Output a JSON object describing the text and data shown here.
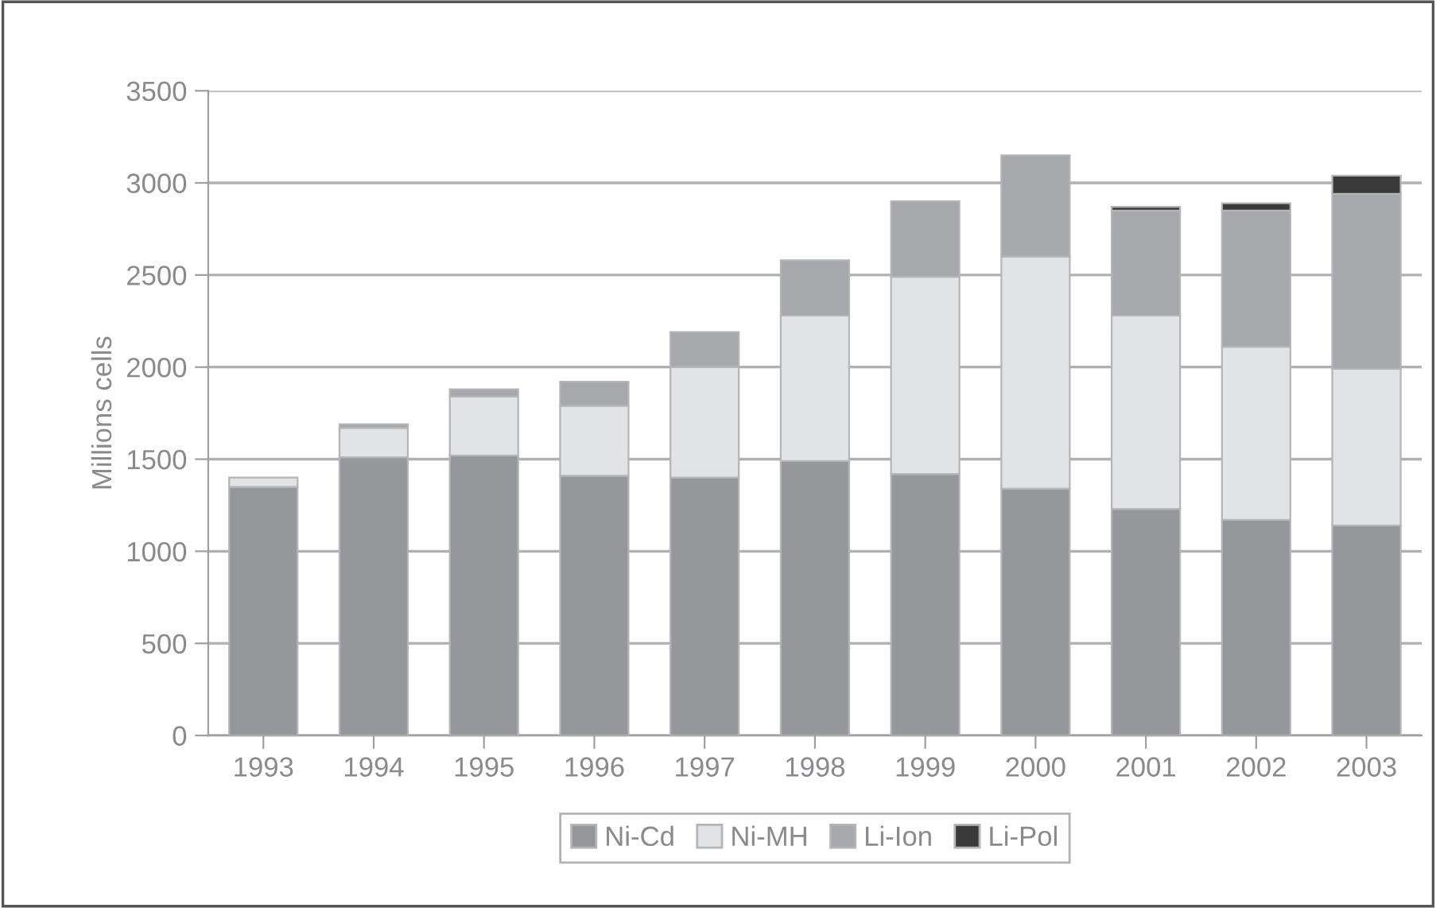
{
  "chart_data": {
    "type": "bar",
    "stacked": true,
    "ylabel": "Millions cells",
    "categories": [
      "1993",
      "1994",
      "1995",
      "1996",
      "1997",
      "1998",
      "1999",
      "2000",
      "2001",
      "2002",
      "2003"
    ],
    "series": [
      {
        "name": "Ni-Cd",
        "color": "#96979b",
        "values": [
          1350,
          1510,
          1520,
          1410,
          1400,
          1490,
          1420,
          1340,
          1230,
          1170,
          1140
        ]
      },
      {
        "name": "Ni-MH",
        "color": "#e2e3e5",
        "values": [
          50,
          160,
          320,
          380,
          600,
          790,
          1070,
          1260,
          1050,
          940,
          850
        ]
      },
      {
        "name": "Li-Ion",
        "color": "#a7a8ab",
        "values": [
          null,
          20,
          40,
          130,
          190,
          300,
          410,
          550,
          570,
          740,
          950
        ]
      },
      {
        "name": "Li-Pol",
        "color": "#3a3a3a",
        "values": [
          null,
          null,
          null,
          null,
          null,
          null,
          null,
          null,
          20,
          40,
          100
        ]
      }
    ],
    "ylim": [
      0,
      3500
    ],
    "yticks": [
      0,
      500,
      1000,
      1500,
      2000,
      2500,
      3000,
      3500
    ],
    "grid": "y",
    "legend": "bottom"
  }
}
